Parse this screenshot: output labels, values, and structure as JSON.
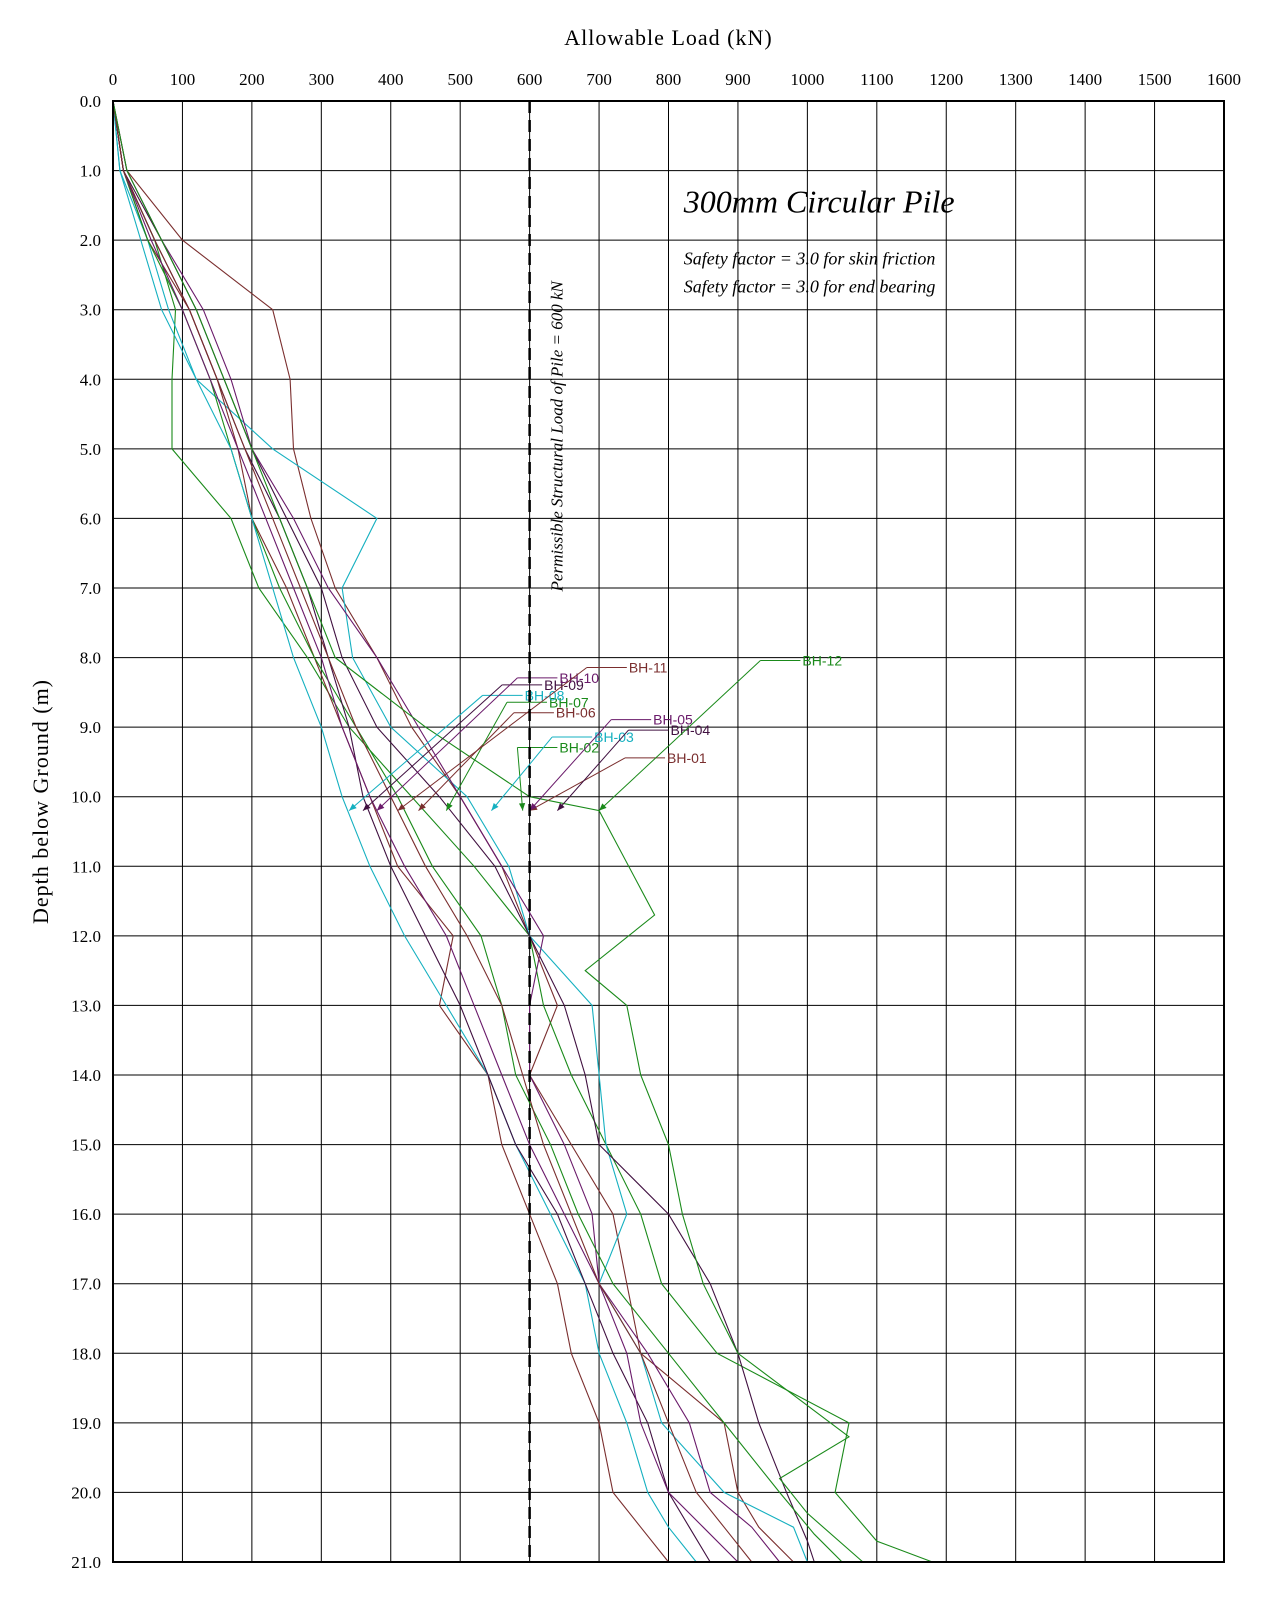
{
  "chart_data": {
    "type": "line",
    "title": "300mm Circular Pile",
    "notes": [
      "Safety factor = 3.0 for skin friction",
      "Safety factor = 3.0 for end bearing"
    ],
    "xlabel": "Allowable Load (kN)",
    "ylabel": "Depth below Ground (m)",
    "xlim": [
      0,
      1600
    ],
    "ylim": [
      0,
      21
    ],
    "x_ticks": [
      "0",
      "100",
      "200",
      "300",
      "400",
      "500",
      "600",
      "700",
      "800",
      "900",
      "1000",
      "1100",
      "1200",
      "1300",
      "1400",
      "1500",
      "1600"
    ],
    "y_ticks": [
      "0.0",
      "1.0",
      "2.0",
      "3.0",
      "4.0",
      "5.0",
      "6.0",
      "7.0",
      "8.0",
      "9.0",
      "10.0",
      "11.0",
      "12.0",
      "13.0",
      "14.0",
      "15.0",
      "16.0",
      "17.0",
      "18.0",
      "19.0",
      "20.0",
      "21.0"
    ],
    "grid": true,
    "reference_line": {
      "x": 600,
      "label": "Permissible Structural Load of Pile = 600 kN",
      "style": "dashed"
    },
    "series": [
      {
        "name": "BH-01",
        "color": "#7a2e2e",
        "label_anchor": [
          795,
          9.5
        ],
        "arrow_to": [
          600,
          10.2
        ],
        "points": [
          [
            0,
            0
          ],
          [
            20,
            1
          ],
          [
            100,
            2
          ],
          [
            230,
            3
          ],
          [
            255,
            4
          ],
          [
            260,
            5
          ],
          [
            285,
            6
          ],
          [
            320,
            7
          ],
          [
            380,
            8
          ],
          [
            430,
            9
          ],
          [
            500,
            10
          ],
          [
            560,
            11
          ],
          [
            600,
            12
          ],
          [
            640,
            13
          ],
          [
            600,
            14
          ],
          [
            660,
            15
          ],
          [
            720,
            16
          ],
          [
            740,
            17
          ],
          [
            760,
            18
          ],
          [
            880,
            19
          ],
          [
            900,
            20
          ],
          [
            930,
            20.5
          ],
          [
            980,
            21
          ]
        ]
      },
      {
        "name": "BH-02",
        "color": "#1a8a1a",
        "label_anchor": [
          640,
          9.35
        ],
        "arrow_to": [
          590,
          10.2
        ],
        "points": [
          [
            0,
            0
          ],
          [
            15,
            1
          ],
          [
            60,
            2
          ],
          [
            90,
            3
          ],
          [
            85,
            4
          ],
          [
            85,
            5
          ],
          [
            170,
            6
          ],
          [
            210,
            7
          ],
          [
            280,
            8
          ],
          [
            340,
            9
          ],
          [
            430,
            10
          ],
          [
            520,
            11
          ],
          [
            600,
            12
          ],
          [
            620,
            13
          ],
          [
            660,
            14
          ],
          [
            710,
            15
          ],
          [
            760,
            16
          ],
          [
            790,
            17
          ],
          [
            870,
            18
          ],
          [
            1060,
            19
          ],
          [
            1040,
            20
          ],
          [
            1100,
            20.7
          ],
          [
            1180,
            21
          ]
        ]
      },
      {
        "name": "BH-03",
        "color": "#15b0c0",
        "label_anchor": [
          690,
          9.2
        ],
        "arrow_to": [
          545,
          10.2
        ],
        "points": [
          [
            0,
            0
          ],
          [
            10,
            1
          ],
          [
            50,
            2
          ],
          [
            80,
            3
          ],
          [
            120,
            4
          ],
          [
            230,
            5
          ],
          [
            380,
            6
          ],
          [
            330,
            7
          ],
          [
            345,
            8
          ],
          [
            400,
            9
          ],
          [
            510,
            10
          ],
          [
            570,
            11
          ],
          [
            600,
            12
          ],
          [
            690,
            13
          ],
          [
            700,
            14
          ],
          [
            710,
            15
          ],
          [
            740,
            16
          ],
          [
            700,
            17
          ],
          [
            760,
            18
          ],
          [
            790,
            19
          ],
          [
            880,
            20
          ],
          [
            980,
            20.5
          ],
          [
            1000,
            21
          ]
        ]
      },
      {
        "name": "BH-04",
        "color": "#401040",
        "label_anchor": [
          800,
          9.1
        ],
        "arrow_to": [
          640,
          10.2
        ],
        "points": [
          [
            0,
            0
          ],
          [
            15,
            1
          ],
          [
            70,
            2
          ],
          [
            120,
            3
          ],
          [
            160,
            4
          ],
          [
            200,
            5
          ],
          [
            250,
            6
          ],
          [
            300,
            7
          ],
          [
            330,
            8
          ],
          [
            380,
            9
          ],
          [
            470,
            10
          ],
          [
            550,
            11
          ],
          [
            600,
            12
          ],
          [
            650,
            13
          ],
          [
            680,
            14
          ],
          [
            700,
            15
          ],
          [
            800,
            16
          ],
          [
            860,
            17
          ],
          [
            900,
            18
          ],
          [
            930,
            19
          ],
          [
            970,
            20
          ],
          [
            1000,
            20.7
          ],
          [
            1010,
            21
          ]
        ]
      },
      {
        "name": "BH-05",
        "color": "#6a1a6a",
        "label_anchor": [
          775,
          8.95
        ],
        "arrow_to": [
          600,
          10.2
        ],
        "points": [
          [
            0,
            0
          ],
          [
            20,
            1
          ],
          [
            70,
            2
          ],
          [
            130,
            3
          ],
          [
            170,
            4
          ],
          [
            200,
            5
          ],
          [
            260,
            6
          ],
          [
            310,
            7
          ],
          [
            380,
            8
          ],
          [
            440,
            9
          ],
          [
            500,
            10
          ],
          [
            560,
            11
          ],
          [
            620,
            12
          ],
          [
            600,
            13
          ],
          [
            600,
            14
          ],
          [
            650,
            15
          ],
          [
            690,
            16
          ],
          [
            700,
            17
          ],
          [
            770,
            18
          ],
          [
            830,
            19
          ],
          [
            860,
            20
          ],
          [
            920,
            20.5
          ],
          [
            960,
            21
          ]
        ]
      },
      {
        "name": "BH-06",
        "color": "#7a2e2e",
        "label_anchor": [
          635,
          8.85
        ],
        "arrow_to": [
          440,
          10.2
        ],
        "points": [
          [
            0,
            0
          ],
          [
            15,
            1
          ],
          [
            50,
            2
          ],
          [
            110,
            3
          ],
          [
            150,
            4
          ],
          [
            180,
            5
          ],
          [
            200,
            6
          ],
          [
            250,
            7
          ],
          [
            290,
            8
          ],
          [
            330,
            9
          ],
          [
            370,
            10
          ],
          [
            410,
            11
          ],
          [
            490,
            12
          ],
          [
            470,
            13
          ],
          [
            540,
            14
          ],
          [
            560,
            15
          ],
          [
            600,
            16
          ],
          [
            640,
            17
          ],
          [
            660,
            18
          ],
          [
            700,
            19
          ],
          [
            720,
            20
          ],
          [
            760,
            20.5
          ],
          [
            800,
            21
          ]
        ]
      },
      {
        "name": "BH-07",
        "color": "#1a8a1a",
        "label_anchor": [
          625,
          8.7
        ],
        "arrow_to": [
          480,
          10.2
        ],
        "points": [
          [
            0,
            0
          ],
          [
            15,
            1
          ],
          [
            50,
            2
          ],
          [
            100,
            3
          ],
          [
            140,
            4
          ],
          [
            170,
            5
          ],
          [
            200,
            6
          ],
          [
            240,
            7
          ],
          [
            290,
            8
          ],
          [
            350,
            9
          ],
          [
            410,
            10
          ],
          [
            460,
            11
          ],
          [
            530,
            12
          ],
          [
            560,
            13
          ],
          [
            580,
            14
          ],
          [
            630,
            15
          ],
          [
            670,
            16
          ],
          [
            720,
            17
          ],
          [
            800,
            18
          ],
          [
            880,
            19
          ],
          [
            960,
            20
          ],
          [
            1010,
            20.6
          ],
          [
            1050,
            21
          ]
        ]
      },
      {
        "name": "BH-08",
        "color": "#15b0c0",
        "label_anchor": [
          590,
          8.6
        ],
        "arrow_to": [
          340,
          10.2
        ],
        "points": [
          [
            0,
            0
          ],
          [
            10,
            1
          ],
          [
            40,
            2
          ],
          [
            70,
            3
          ],
          [
            120,
            4
          ],
          [
            170,
            5
          ],
          [
            200,
            6
          ],
          [
            230,
            7
          ],
          [
            260,
            8
          ],
          [
            300,
            9
          ],
          [
            330,
            10
          ],
          [
            370,
            11
          ],
          [
            420,
            12
          ],
          [
            480,
            13
          ],
          [
            540,
            14
          ],
          [
            580,
            15
          ],
          [
            630,
            16
          ],
          [
            680,
            17
          ],
          [
            700,
            18
          ],
          [
            740,
            19
          ],
          [
            770,
            20
          ],
          [
            800,
            20.5
          ],
          [
            840,
            21
          ]
        ]
      },
      {
        "name": "BH-09",
        "color": "#401040",
        "label_anchor": [
          618,
          8.45
        ],
        "arrow_to": [
          360,
          10.2
        ],
        "points": [
          [
            0,
            0
          ],
          [
            15,
            1
          ],
          [
            60,
            2
          ],
          [
            110,
            3
          ],
          [
            150,
            4
          ],
          [
            190,
            5
          ],
          [
            240,
            6
          ],
          [
            280,
            7
          ],
          [
            310,
            8
          ],
          [
            340,
            9
          ],
          [
            360,
            10
          ],
          [
            400,
            11
          ],
          [
            450,
            12
          ],
          [
            500,
            13
          ],
          [
            540,
            14
          ],
          [
            580,
            15
          ],
          [
            640,
            16
          ],
          [
            680,
            17
          ],
          [
            720,
            18
          ],
          [
            770,
            19
          ],
          [
            800,
            20
          ],
          [
            830,
            20.5
          ],
          [
            860,
            21
          ]
        ]
      },
      {
        "name": "BH-10",
        "color": "#6a1a6a",
        "label_anchor": [
          640,
          8.35
        ],
        "arrow_to": [
          380,
          10.2
        ],
        "points": [
          [
            0,
            0
          ],
          [
            15,
            1
          ],
          [
            55,
            2
          ],
          [
            100,
            3
          ],
          [
            140,
            4
          ],
          [
            180,
            5
          ],
          [
            220,
            6
          ],
          [
            260,
            7
          ],
          [
            300,
            8
          ],
          [
            330,
            9
          ],
          [
            370,
            10
          ],
          [
            420,
            11
          ],
          [
            480,
            12
          ],
          [
            520,
            13
          ],
          [
            560,
            14
          ],
          [
            600,
            15
          ],
          [
            650,
            16
          ],
          [
            700,
            17
          ],
          [
            740,
            18
          ],
          [
            760,
            19
          ],
          [
            800,
            20
          ],
          [
            850,
            20.5
          ],
          [
            900,
            21
          ]
        ]
      },
      {
        "name": "BH-11",
        "color": "#7a2e2e",
        "label_anchor": [
          740,
          8.2
        ],
        "arrow_to": [
          410,
          10.2
        ],
        "points": [
          [
            0,
            0
          ],
          [
            15,
            1
          ],
          [
            60,
            2
          ],
          [
            110,
            3
          ],
          [
            150,
            4
          ],
          [
            190,
            5
          ],
          [
            230,
            6
          ],
          [
            270,
            7
          ],
          [
            310,
            8
          ],
          [
            350,
            9
          ],
          [
            400,
            10
          ],
          [
            450,
            11
          ],
          [
            510,
            12
          ],
          [
            560,
            13
          ],
          [
            590,
            14
          ],
          [
            620,
            15
          ],
          [
            660,
            16
          ],
          [
            700,
            17
          ],
          [
            760,
            18
          ],
          [
            800,
            19
          ],
          [
            840,
            20
          ],
          [
            880,
            20.5
          ],
          [
            920,
            21
          ]
        ]
      },
      {
        "name": "BH-12",
        "color": "#1a8a1a",
        "label_anchor": [
          990,
          8.1
        ],
        "arrow_to": [
          700,
          10.2
        ],
        "points": [
          [
            0,
            0
          ],
          [
            20,
            1
          ],
          [
            70,
            2
          ],
          [
            120,
            3
          ],
          [
            160,
            4
          ],
          [
            200,
            5
          ],
          [
            240,
            6
          ],
          [
            280,
            7
          ],
          [
            320,
            8
          ],
          [
            450,
            9
          ],
          [
            600,
            10
          ],
          [
            700,
            10.2
          ],
          [
            780,
            11.7
          ],
          [
            680,
            12.5
          ],
          [
            740,
            13
          ],
          [
            760,
            14
          ],
          [
            800,
            15
          ],
          [
            820,
            16
          ],
          [
            850,
            17
          ],
          [
            900,
            18
          ],
          [
            1060,
            19.2
          ],
          [
            960,
            19.8
          ],
          [
            1000,
            20.3
          ],
          [
            1080,
            21
          ]
        ]
      }
    ]
  }
}
